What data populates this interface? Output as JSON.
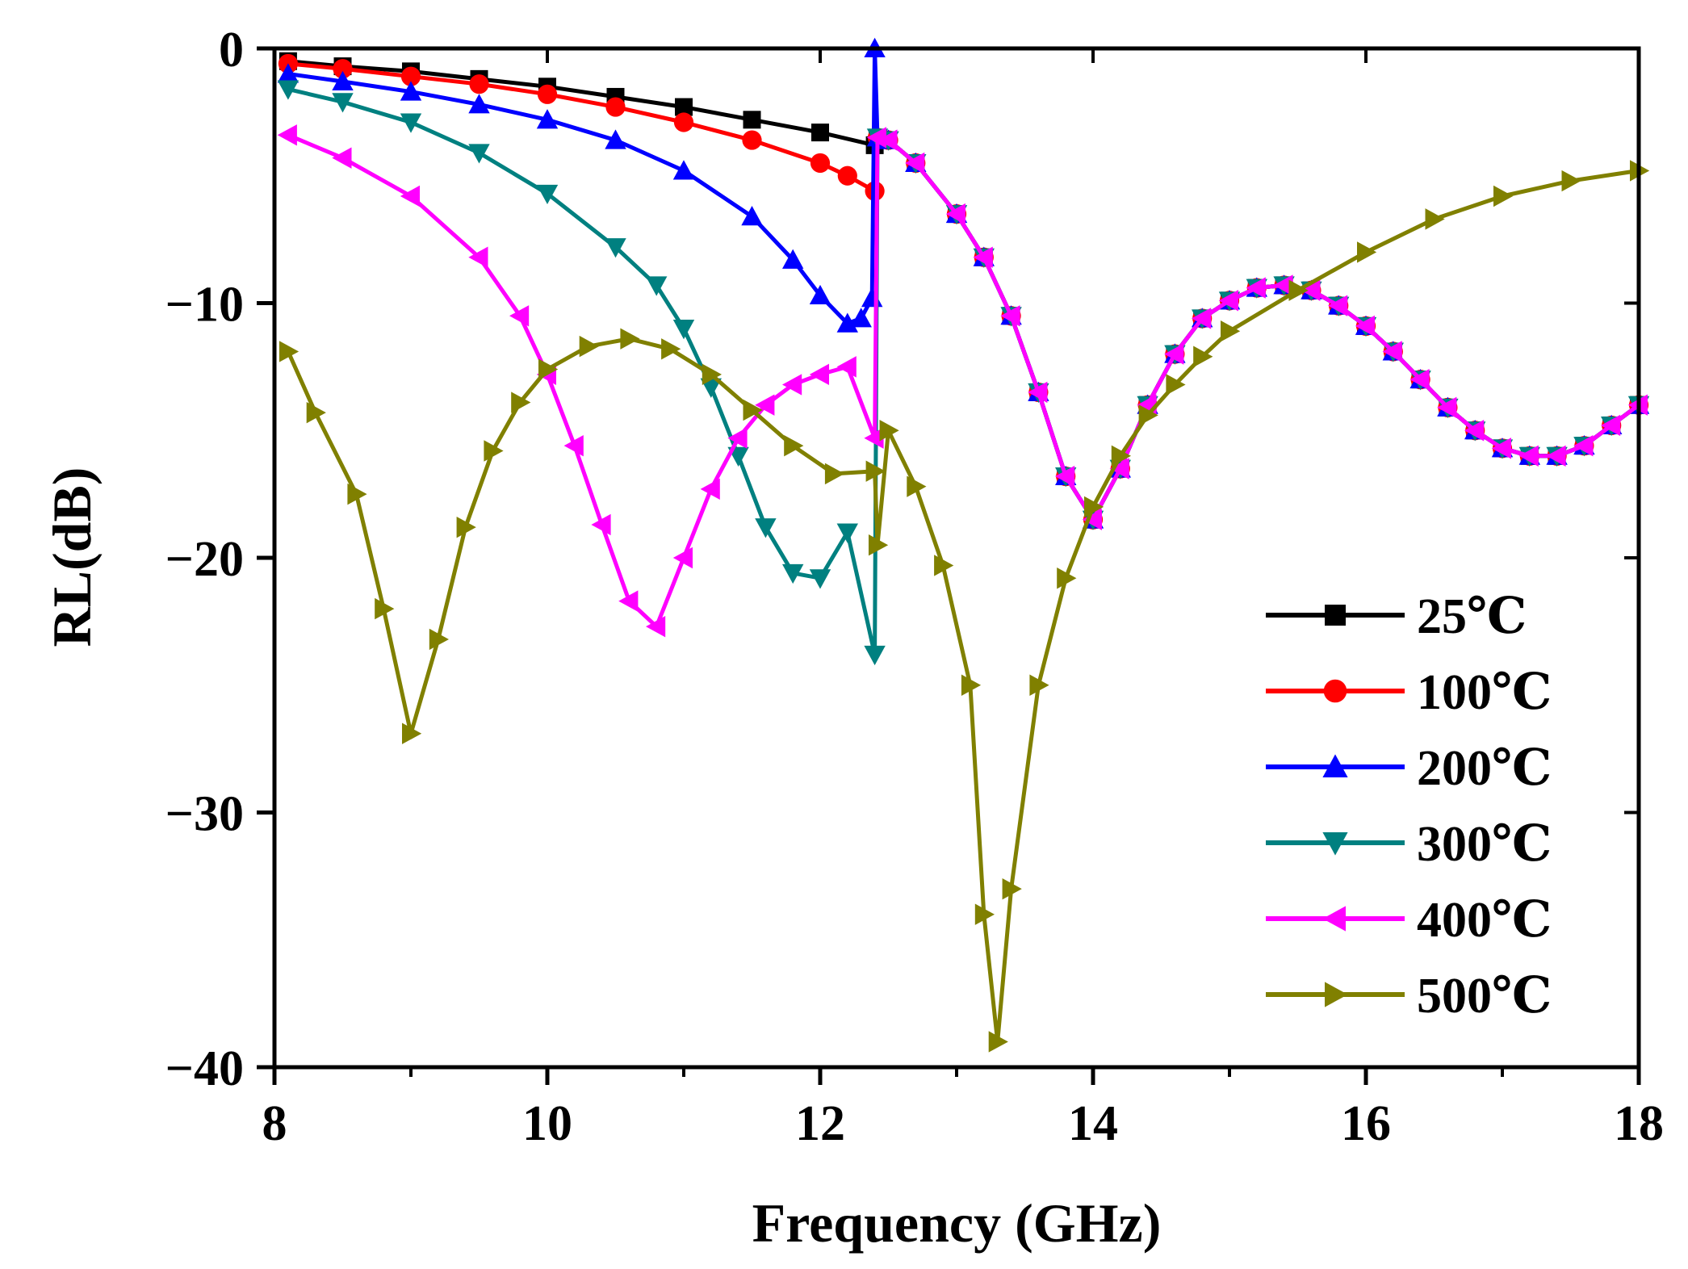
{
  "chart_data": {
    "type": "line",
    "title": "",
    "xlabel": "Frequency (GHz)",
    "ylabel": "RL(dB)",
    "xlim": [
      8,
      18
    ],
    "ylim": [
      -40,
      0
    ],
    "xticks": [
      8,
      10,
      12,
      14,
      16,
      18
    ],
    "yticks": [
      0,
      -10,
      -20,
      -30,
      -40
    ],
    "ytick_labels": [
      "0",
      "−10",
      "−20",
      "−30",
      "−40"
    ],
    "legend_position": "bottom-right",
    "series": [
      {
        "name": "25℃",
        "color": "#000000",
        "marker": "square",
        "x": [
          8.1,
          8.5,
          9,
          9.5,
          10,
          10.5,
          11,
          11.5,
          12,
          12.4,
          12.42,
          12.5,
          12.7,
          13,
          13.2,
          13.4,
          13.6,
          13.8,
          14.0,
          14.2,
          14.4,
          14.6,
          14.8,
          15.0,
          15.2,
          15.4,
          15.6,
          15.8,
          16.0,
          16.2,
          16.4,
          16.6,
          16.8,
          17.0,
          17.2,
          17.4,
          17.6,
          17.8,
          18.0
        ],
        "y": [
          -0.5,
          -0.7,
          -0.9,
          -1.2,
          -1.5,
          -1.9,
          -2.3,
          -2.8,
          -3.3,
          -3.8,
          -3.5,
          -3.6,
          -4.5,
          -6.5,
          -8.2,
          -10.5,
          -13.5,
          -16.8,
          -18.5,
          -16.5,
          -14.0,
          -12.0,
          -10.6,
          -9.9,
          -9.4,
          -9.3,
          -9.5,
          -10.1,
          -10.9,
          -11.9,
          -13.0,
          -14.1,
          -15.0,
          -15.7,
          -16.0,
          -16.0,
          -15.6,
          -14.8,
          -14.0
        ]
      },
      {
        "name": "100℃",
        "color": "#ff0000",
        "marker": "circle",
        "x": [
          8.1,
          8.5,
          9,
          9.5,
          10,
          10.5,
          11,
          11.5,
          12,
          12.2,
          12.4,
          12.42,
          12.5,
          12.7,
          13,
          13.2,
          13.4,
          13.6,
          13.8,
          14.0,
          14.2,
          14.4,
          14.6,
          14.8,
          15.0,
          15.2,
          15.4,
          15.6,
          15.8,
          16.0,
          16.2,
          16.4,
          16.6,
          16.8,
          17.0,
          17.2,
          17.4,
          17.6,
          17.8,
          18.0
        ],
        "y": [
          -0.6,
          -0.8,
          -1.1,
          -1.4,
          -1.8,
          -2.3,
          -2.9,
          -3.6,
          -4.5,
          -5.0,
          -5.6,
          -3.5,
          -3.6,
          -4.5,
          -6.5,
          -8.2,
          -10.5,
          -13.5,
          -16.8,
          -18.5,
          -16.5,
          -14.0,
          -12.0,
          -10.6,
          -9.9,
          -9.4,
          -9.3,
          -9.5,
          -10.1,
          -10.9,
          -11.9,
          -13.0,
          -14.1,
          -15.0,
          -15.7,
          -16.0,
          -16.0,
          -15.6,
          -14.8,
          -14.0
        ]
      },
      {
        "name": "200℃",
        "color": "#0000ff",
        "marker": "triangle-up",
        "x": [
          8.1,
          8.5,
          9,
          9.5,
          10,
          10.5,
          11,
          11.5,
          11.8,
          12.0,
          12.2,
          12.3,
          12.38,
          12.4,
          12.42,
          12.5,
          12.7,
          13,
          13.2,
          13.4,
          13.6,
          13.8,
          14.0,
          14.2,
          14.4,
          14.6,
          14.8,
          15.0,
          15.2,
          15.4,
          15.6,
          15.8,
          16.0,
          16.2,
          16.4,
          16.6,
          16.8,
          17.0,
          17.2,
          17.4,
          17.6,
          17.8,
          18.0
        ],
        "y": [
          -1.0,
          -1.3,
          -1.7,
          -2.2,
          -2.8,
          -3.6,
          -4.8,
          -6.6,
          -8.3,
          -9.7,
          -10.8,
          -10.6,
          -9.8,
          0,
          -3.5,
          -3.6,
          -4.5,
          -6.5,
          -8.2,
          -10.5,
          -13.5,
          -16.8,
          -18.5,
          -16.5,
          -14.0,
          -12.0,
          -10.6,
          -9.9,
          -9.4,
          -9.3,
          -9.5,
          -10.1,
          -10.9,
          -11.9,
          -13.0,
          -14.1,
          -15.0,
          -15.7,
          -16.0,
          -16.0,
          -15.6,
          -14.8,
          -14.0
        ]
      },
      {
        "name": "300℃",
        "color": "#008080",
        "marker": "triangle-down",
        "x": [
          8.1,
          8.5,
          9,
          9.5,
          10,
          10.5,
          10.8,
          11.0,
          11.2,
          11.4,
          11.6,
          11.8,
          12.0,
          12.2,
          12.4,
          12.42,
          12.5,
          12.7,
          13,
          13.2,
          13.4,
          13.6,
          13.8,
          14.0,
          14.2,
          14.4,
          14.6,
          14.8,
          15.0,
          15.2,
          15.4,
          15.6,
          15.8,
          16.0,
          16.2,
          16.4,
          16.6,
          16.8,
          17.0,
          17.2,
          17.4,
          17.6,
          17.8,
          18.0
        ],
        "y": [
          -1.6,
          -2.1,
          -2.9,
          -4.1,
          -5.7,
          -7.8,
          -9.3,
          -11.0,
          -13.3,
          -16.0,
          -18.8,
          -20.6,
          -20.8,
          -19.0,
          -23.8,
          -3.5,
          -3.6,
          -4.5,
          -6.5,
          -8.2,
          -10.5,
          -13.5,
          -16.8,
          -18.5,
          -16.5,
          -14.0,
          -12.0,
          -10.6,
          -9.9,
          -9.4,
          -9.3,
          -9.5,
          -10.1,
          -10.9,
          -11.9,
          -13.0,
          -14.1,
          -15.0,
          -15.7,
          -16.0,
          -16.0,
          -15.6,
          -14.8,
          -14.0
        ]
      },
      {
        "name": "400℃",
        "color": "#ff00ff",
        "marker": "triangle-left",
        "x": [
          8.1,
          8.5,
          9,
          9.5,
          9.8,
          10.0,
          10.2,
          10.4,
          10.6,
          10.8,
          11.0,
          11.2,
          11.4,
          11.6,
          11.8,
          12.0,
          12.2,
          12.4,
          12.42,
          12.5,
          12.7,
          13,
          13.2,
          13.4,
          13.6,
          13.8,
          14.0,
          14.2,
          14.4,
          14.6,
          14.8,
          15.0,
          15.2,
          15.4,
          15.6,
          15.8,
          16.0,
          16.2,
          16.4,
          16.6,
          16.8,
          17.0,
          17.2,
          17.4,
          17.6,
          17.8,
          18.0
        ],
        "y": [
          -3.4,
          -4.3,
          -5.8,
          -8.2,
          -10.5,
          -12.8,
          -15.6,
          -18.7,
          -21.7,
          -22.7,
          -20.0,
          -17.3,
          -15.3,
          -14.0,
          -13.2,
          -12.8,
          -12.5,
          -15.3,
          -3.5,
          -3.6,
          -4.5,
          -6.5,
          -8.2,
          -10.5,
          -13.5,
          -16.8,
          -18.5,
          -16.5,
          -14.0,
          -12.0,
          -10.6,
          -9.9,
          -9.4,
          -9.3,
          -9.5,
          -10.1,
          -10.9,
          -11.9,
          -13.0,
          -14.1,
          -15.0,
          -15.7,
          -16.0,
          -16.0,
          -15.6,
          -14.8,
          -14.0
        ]
      },
      {
        "name": "500℃",
        "color": "#808000",
        "marker": "triangle-right",
        "x": [
          8.1,
          8.3,
          8.6,
          8.8,
          9.0,
          9.2,
          9.4,
          9.6,
          9.8,
          10.0,
          10.3,
          10.6,
          10.9,
          11.2,
          11.5,
          11.8,
          12.1,
          12.4,
          12.42,
          12.5,
          12.7,
          12.9,
          13.1,
          13.2,
          13.3,
          13.4,
          13.6,
          13.8,
          14.0,
          14.2,
          14.4,
          14.6,
          14.8,
          15.0,
          15.5,
          16.0,
          16.5,
          17.0,
          17.5,
          18.0
        ],
        "y": [
          -11.9,
          -14.3,
          -17.5,
          -22.0,
          -26.9,
          -23.2,
          -18.8,
          -15.8,
          -13.9,
          -12.6,
          -11.7,
          -11.4,
          -11.8,
          -12.8,
          -14.2,
          -15.6,
          -16.7,
          -16.6,
          -19.5,
          -15.0,
          -17.2,
          -20.3,
          -25.0,
          -34.0,
          -39.0,
          -33.0,
          -25.0,
          -20.8,
          -18.0,
          -16.0,
          -14.4,
          -13.2,
          -12.1,
          -11.1,
          -9.5,
          -8.0,
          -6.7,
          -5.8,
          -5.2,
          -4.8
        ]
      }
    ]
  }
}
